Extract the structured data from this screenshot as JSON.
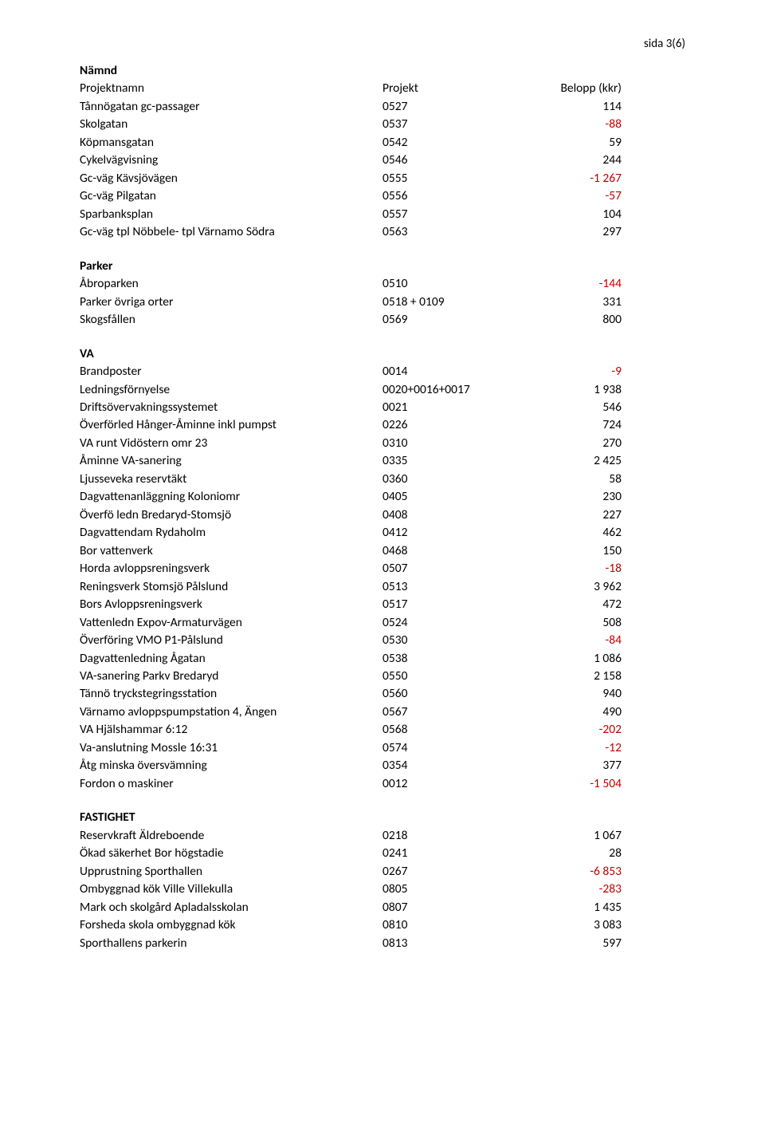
{
  "page_label": "sida 3(6)",
  "namnd_heading": "Nämnd",
  "header": {
    "name": "Projektnamn",
    "proj": "Projekt",
    "val": "Belopp (kkr)"
  },
  "top_rows": [
    {
      "name": "Tånnögatan gc-passager",
      "proj": "0527",
      "val": "114",
      "neg": false
    },
    {
      "name": "Skolgatan",
      "proj": "0537",
      "val": "-88",
      "neg": true
    },
    {
      "name": "Köpmansgatan",
      "proj": "0542",
      "val": "59",
      "neg": false
    },
    {
      "name": "Cykelvägvisning",
      "proj": "0546",
      "val": "244",
      "neg": false
    },
    {
      "name": "Gc-väg Kävsjövägen",
      "proj": "0555",
      "val": "-1 267",
      "neg": true
    },
    {
      "name": "Gc-väg Pilgatan",
      "proj": "0556",
      "val": "-57",
      "neg": true
    },
    {
      "name": "Sparbanksplan",
      "proj": "0557",
      "val": "104",
      "neg": false
    },
    {
      "name": "Gc-väg tpl Nöbbele- tpl Värnamo Södra",
      "proj": "0563",
      "val": "297",
      "neg": false
    }
  ],
  "parker_heading": "Parker",
  "parker_rows": [
    {
      "name": "Åbroparken",
      "proj": "0510",
      "val": "-144",
      "neg": true
    },
    {
      "name": "Parker övriga orter",
      "proj": "0518 + 0109",
      "val": "331",
      "neg": false
    },
    {
      "name": "Skogsfållen",
      "proj": "0569",
      "val": "800",
      "neg": false
    }
  ],
  "va_heading": "VA",
  "va_rows": [
    {
      "name": "Brandposter",
      "proj": "0014",
      "val": "-9",
      "neg": true
    },
    {
      "name": "Ledningsförnyelse",
      "proj": "0020+0016+0017",
      "val": "1 938",
      "neg": false
    },
    {
      "name": "Driftsövervakningssystemet",
      "proj": "0021",
      "val": "546",
      "neg": false
    },
    {
      "name": "Överförled Hånger-Åminne inkl pumpst",
      "proj": "0226",
      "val": "724",
      "neg": false
    },
    {
      "name": "VA runt Vidöstern omr 23",
      "proj": "0310",
      "val": "270",
      "neg": false
    },
    {
      "name": "Åminne VA-sanering",
      "proj": "0335",
      "val": "2 425",
      "neg": false
    },
    {
      "name": "Ljusseveka reservtäkt",
      "proj": "0360",
      "val": "58",
      "neg": false
    },
    {
      "name": "Dagvattenanläggning Koloniomr",
      "proj": "0405",
      "val": "230",
      "neg": false
    },
    {
      "name": "Överfö ledn Bredaryd-Stomsjö",
      "proj": "0408",
      "val": "227",
      "neg": false
    },
    {
      "name": "Dagvattendam Rydaholm",
      "proj": "0412",
      "val": "462",
      "neg": false
    },
    {
      "name": "Bor vattenverk",
      "proj": "0468",
      "val": "150",
      "neg": false
    },
    {
      "name": "Horda avloppsreningsverk",
      "proj": "0507",
      "val": "-18",
      "neg": true
    },
    {
      "name": "Reningsverk Stomsjö Pålslund",
      "proj": "0513",
      "val": "3 962",
      "neg": false
    },
    {
      "name": "Bors Avloppsreningsverk",
      "proj": "0517",
      "val": "472",
      "neg": false
    },
    {
      "name": "Vattenledn Expov-Armaturvägen",
      "proj": "0524",
      "val": "508",
      "neg": false
    },
    {
      "name": "Överföring VMO P1-Pålslund",
      "proj": "0530",
      "val": "-84",
      "neg": true
    },
    {
      "name": "Dagvattenledning Ågatan",
      "proj": "0538",
      "val": "1 086",
      "neg": false
    },
    {
      "name": "VA-sanering Parkv Bredaryd",
      "proj": "0550",
      "val": "2 158",
      "neg": false
    },
    {
      "name": "Tännö tryckstegringsstation",
      "proj": "0560",
      "val": "940",
      "neg": false
    },
    {
      "name": "Värnamo avloppspumpstation 4, Ängen",
      "proj": "0567",
      "val": "490",
      "neg": false
    },
    {
      "name": "VA Hjälshammar 6:12",
      "proj": "0568",
      "val": "-202",
      "neg": true
    },
    {
      "name": "Va-anslutning Mossle 16:31",
      "proj": "0574",
      "val": "-12",
      "neg": true
    },
    {
      "name": "Åtg minska översvämning",
      "proj": "0354",
      "val": "377",
      "neg": false
    },
    {
      "name": "Fordon o maskiner",
      "proj": "0012",
      "val": "-1 504",
      "neg": true
    }
  ],
  "fastighet_heading": "FASTIGHET",
  "fastighet_rows": [
    {
      "name": "Reservkraft Äldreboende",
      "proj": "0218",
      "val": "1 067",
      "neg": false
    },
    {
      "name": "Ökad säkerhet Bor högstadie",
      "proj": "0241",
      "val": "28",
      "neg": false
    },
    {
      "name": "Upprustning Sporthallen",
      "proj": "0267",
      "val": "-6 853",
      "neg": true
    },
    {
      "name": "Ombyggnad kök Ville Villekulla",
      "proj": "0805",
      "val": "-283",
      "neg": true
    },
    {
      "name": "Mark och skolgård Apladalsskolan",
      "proj": "0807",
      "val": "1 435",
      "neg": false
    },
    {
      "name": "Forsheda skola ombyggnad kök",
      "proj": "0810",
      "val": "3 083",
      "neg": false
    },
    {
      "name": "Sporthallens parkerin",
      "proj": "0813",
      "val": "597",
      "neg": false
    }
  ]
}
